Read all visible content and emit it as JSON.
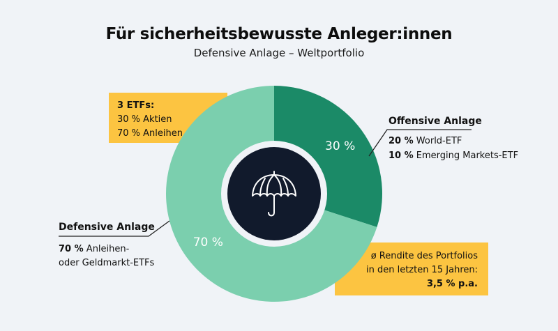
{
  "header": {
    "title": "Für sicherheitsbewusste Anleger:innen",
    "subtitle": "Defensive Anlage – Weltportfolio"
  },
  "colors": {
    "offensive": "#1b8a67",
    "defensive": "#7bcfae",
    "center_fill": "#111a2c",
    "center_ring": "#f0f3f7",
    "callout_box": "#fcc441",
    "background": "#f0f3f7"
  },
  "center_icon": "umbrella-icon",
  "etf_box": {
    "heading": "3 ETFs:",
    "lines": [
      "30 % Aktien",
      "70 % Anleihen"
    ]
  },
  "offensive": {
    "title": "Offensive Anlage",
    "items": [
      {
        "pct": "20 %",
        "label": "World-ETF"
      },
      {
        "pct": "10 %",
        "label": "Emerging Markets-ETF"
      }
    ]
  },
  "defensive": {
    "title": "Defensive Anlage",
    "items": [
      {
        "pct": "70 %",
        "label": "Anleihen-",
        "label2": "oder Geldmarkt-ETFs"
      }
    ]
  },
  "return_box": {
    "line1": "ø Rendite des Portfolios",
    "line2": "in den letzten 15 Jahren:",
    "value": "3,5 % p.a."
  },
  "chart_data": {
    "type": "pie",
    "title": "Für sicherheitsbewusste Anleger:innen",
    "subtitle": "Defensive Anlage – Weltportfolio",
    "categories": [
      "Offensive Anlage",
      "Defensive Anlage"
    ],
    "values": [
      30,
      70
    ],
    "labels": [
      "30 %",
      "70 %"
    ],
    "donut": true,
    "start": "top",
    "direction": "clockwise"
  }
}
